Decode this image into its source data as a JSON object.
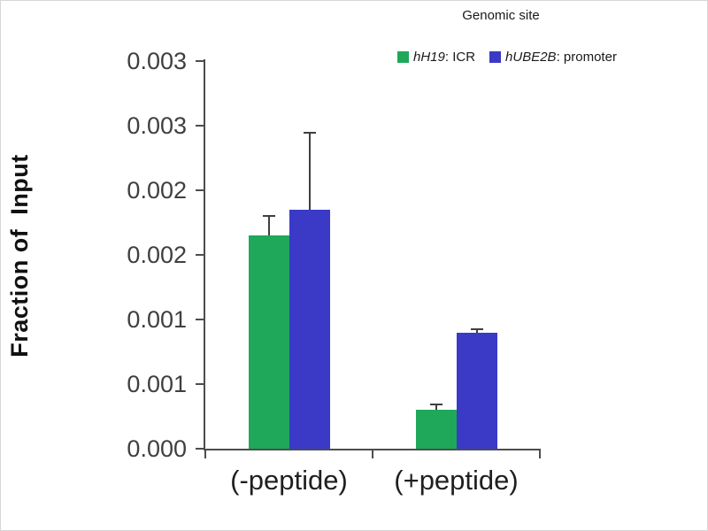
{
  "chart_data": {
    "type": "bar",
    "title": "",
    "ylabel": "Fraction of  Input",
    "xlabel": "",
    "legend_title": "Genomic site",
    "legend_position": "top-right",
    "grid": false,
    "categories": [
      "(-peptide)",
      "(+peptide)"
    ],
    "series": [
      {
        "name": "hH19: ICR",
        "gene": "hH19",
        "rest": ": ICR",
        "color": "#1fa85a",
        "values": [
          0.00165,
          0.0003
        ],
        "errors": [
          0.00016,
          5e-05
        ]
      },
      {
        "name": "hUBE2B: promoter",
        "gene": "hUBE2B",
        "rest": ": promoter",
        "color": "#3a3ac6",
        "values": [
          0.00185,
          0.0009
        ],
        "errors": [
          0.0006,
          3e-05
        ]
      }
    ],
    "ylim": [
      0,
      0.003
    ],
    "ytick_step": 0.0005,
    "ytick_labels": [
      "0.000",
      "0.001",
      "0.001",
      "0.002",
      "0.002",
      "0.003",
      "0.003"
    ]
  }
}
